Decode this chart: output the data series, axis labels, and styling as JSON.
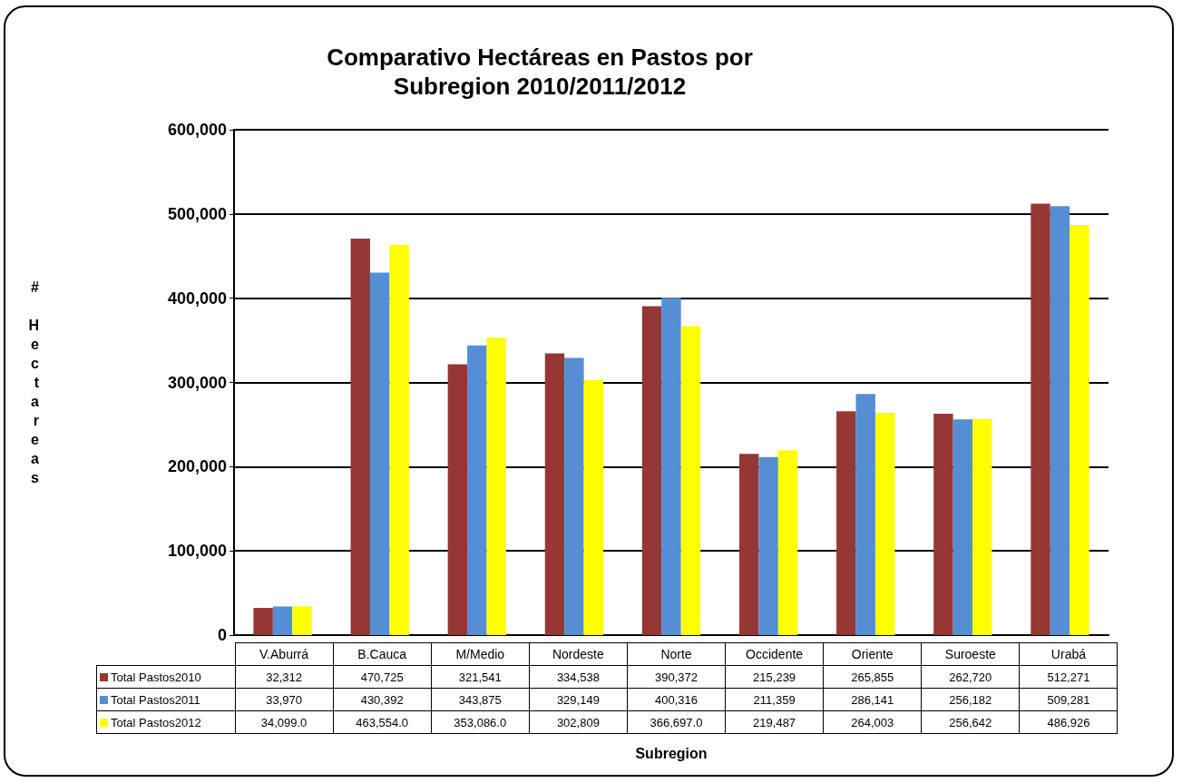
{
  "chart_data": {
    "type": "bar",
    "title": "Comparativo Hectáreas en Pastos por\nSubregion 2010/2011/2012",
    "annotations": [
      "Subregion"
    ],
    "ylabel": "# Hectareas",
    "categories": [
      "V.Aburrá",
      "B.Cauca",
      "M/Medio",
      "Nordeste",
      "Norte",
      "Occidente",
      "Oriente",
      "Suroeste",
      "Urabá"
    ],
    "series": [
      {
        "name": "Total Pastos2010",
        "color": "#953735",
        "values": [
          32312,
          470725,
          321541,
          334538,
          390372,
          215239,
          265855,
          262720,
          512271
        ],
        "value_labels": [
          "32,312",
          "470,725",
          "321,541",
          "334,538",
          "390,372",
          "215,239",
          "265,855",
          "262,720",
          "512,271"
        ]
      },
      {
        "name": "Total Pastos2011",
        "color": "#558ed5",
        "values": [
          33970,
          430392,
          343875,
          329149,
          400316,
          211359,
          286141,
          256182,
          509281
        ],
        "value_labels": [
          "33,970",
          "430,392",
          "343,875",
          "329,149",
          "400,316",
          "211,359",
          "286,141",
          "256,182",
          "509,281"
        ]
      },
      {
        "name": "Total Pastos2012",
        "color": "#ffff00",
        "values": [
          34099,
          463554,
          353086,
          302809,
          366697,
          219487,
          264003,
          256642,
          486926
        ],
        "value_labels": [
          "34,099.0",
          "463,554.0",
          "353,086.0",
          "302,809",
          "366,697.0",
          "219,487",
          "264,003",
          "256,642",
          "486,926"
        ]
      }
    ],
    "ylim": [
      0,
      600000
    ],
    "yticks": [
      0,
      {
        "value": 100000,
        "label": "100,000"
      },
      {
        "value": 200000,
        "label": "200,000"
      },
      {
        "value": 300000,
        "label": "300,000"
      },
      {
        "value": 400000,
        "label": "400,000"
      },
      {
        "value": 500000,
        "label": "500,000"
      },
      {
        "value": 600000,
        "label": "600,000"
      }
    ],
    "grid": "y",
    "legend": "bottom"
  }
}
